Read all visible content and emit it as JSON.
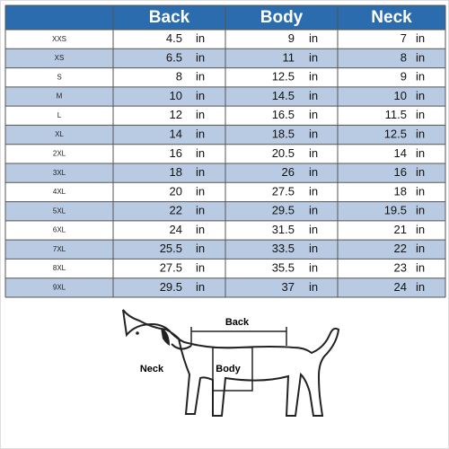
{
  "table": {
    "header": [
      "Back",
      "Body",
      "Neck"
    ],
    "unit": "in",
    "rows": [
      [
        "XXS",
        4.5,
        9,
        7
      ],
      [
        "XS",
        6.5,
        11,
        8
      ],
      [
        "S",
        8,
        12.5,
        9
      ],
      [
        "M",
        10,
        14.5,
        10
      ],
      [
        "L",
        12,
        16.5,
        11.5
      ],
      [
        "XL",
        14,
        18.5,
        12.5
      ],
      [
        "2XL",
        16,
        20.5,
        14
      ],
      [
        "3XL",
        18,
        26,
        16
      ],
      [
        "4XL",
        20,
        27.5,
        18
      ],
      [
        "5XL",
        22,
        29.5,
        19.5
      ],
      [
        "6XL",
        24,
        31.5,
        21
      ],
      [
        "7XL",
        25.5,
        33.5,
        22
      ],
      [
        "8XL",
        27.5,
        35.5,
        23
      ],
      [
        "9XL",
        29.5,
        37,
        24
      ]
    ]
  },
  "diagram": {
    "back": "Back",
    "body": "Body",
    "neck": "Neck"
  }
}
